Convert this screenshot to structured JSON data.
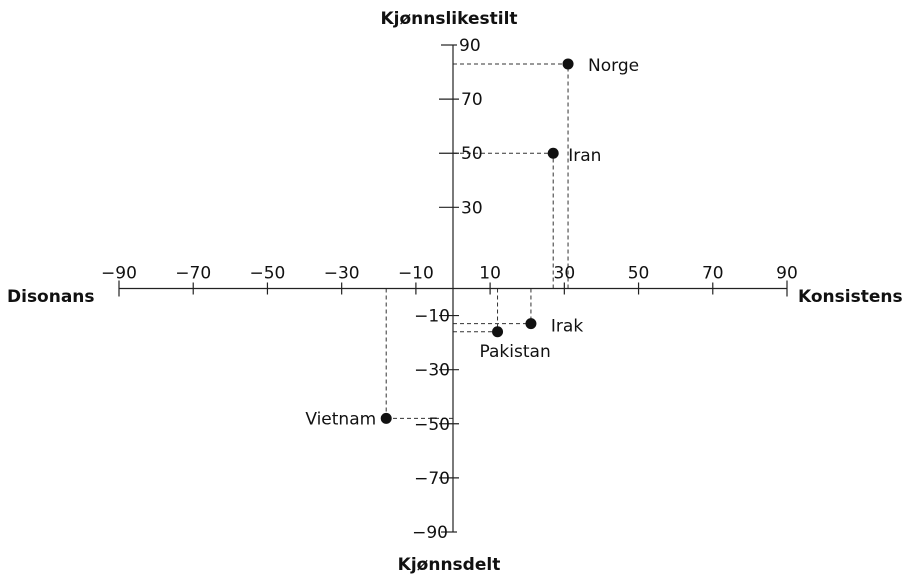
{
  "chart_data": {
    "type": "scatter",
    "axis_titles": {
      "x_left": "Disonans",
      "x_right": "Konsistens",
      "y_top": "Kjønnslikestilt",
      "y_bottom": "Kjønnsdelt"
    },
    "xlim": [
      -90,
      90
    ],
    "ylim": [
      -90,
      90
    ],
    "x_ticks": [
      -90,
      -70,
      -50,
      -30,
      -10,
      10,
      30,
      50,
      70,
      90
    ],
    "x_tick_labels": [
      "−90",
      "−70",
      "−50",
      "−30",
      "−10",
      "10",
      "30",
      "50",
      "70",
      "90"
    ],
    "y_ticks": [
      90,
      70,
      50,
      30,
      -10,
      -30,
      -50,
      -70,
      -90
    ],
    "y_tick_labels": [
      "90",
      "70",
      "50",
      "30",
      "−10",
      "−30",
      "−50",
      "−70",
      "−90"
    ],
    "grid": false,
    "guide_lines": "dashed",
    "points": [
      {
        "label": "Norge",
        "x": 31,
        "y": 83
      },
      {
        "label": "Iran",
        "x": 27,
        "y": 50
      },
      {
        "label": "Irak",
        "x": 21,
        "y": -13
      },
      {
        "label": "Pakistan",
        "x": 12,
        "y": -16
      },
      {
        "label": "Vietnam",
        "x": -18,
        "y": -48
      }
    ]
  }
}
